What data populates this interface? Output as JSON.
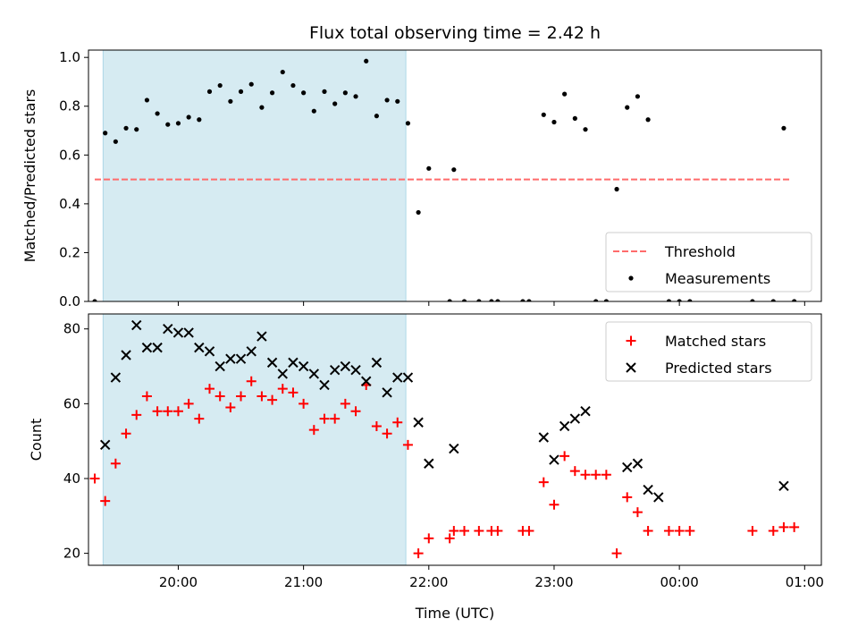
{
  "chart_data": {
    "title": "Flux total observing time = 2.42 h",
    "xlabel": "Time (UTC)",
    "x_unit": "UTC time (days since 00:00 on plotted first day)",
    "x_range": [
      "19:17",
      "01:08"
    ],
    "x_ticks": [
      {
        "time": "20:00",
        "label": "20:00"
      },
      {
        "time": "21:00",
        "label": "21:00"
      },
      {
        "time": "22:00",
        "label": "22:00"
      },
      {
        "time": "23:00",
        "label": "23:00"
      },
      {
        "time": "00:00",
        "label": "00:00"
      },
      {
        "time": "01:00",
        "label": "01:00"
      }
    ],
    "shaded_interval": {
      "start": "19:24",
      "end": "21:49",
      "color": "#add8e6"
    },
    "panels": [
      {
        "id": "ratio",
        "type": "scatter",
        "ylabel": "Matched/Predicted stars",
        "ylim": [
          0,
          1.03
        ],
        "yticks": [
          0.0,
          0.2,
          0.4,
          0.6,
          0.8,
          1.0
        ],
        "ytick_labels": [
          "0.0",
          "0.2",
          "0.4",
          "0.6",
          "0.8",
          "1.0"
        ],
        "legend": {
          "position": "lower right",
          "entries": [
            "Threshold",
            "Measurements"
          ]
        },
        "threshold": {
          "name": "Threshold",
          "y": 0.5,
          "x_start": "19:20",
          "x_end": "00:53",
          "color": "#ff6b6b",
          "style": "dashed"
        },
        "series": [
          {
            "name": "Measurements",
            "color": "#000000",
            "marker": "dot",
            "points": [
              [
                "19:20",
                0.0
              ],
              [
                "19:25",
                0.69
              ],
              [
                "19:30",
                0.655
              ],
              [
                "19:35",
                0.71
              ],
              [
                "19:40",
                0.705
              ],
              [
                "19:45",
                0.825
              ],
              [
                "19:50",
                0.77
              ],
              [
                "19:55",
                0.725
              ],
              [
                "20:00",
                0.73
              ],
              [
                "20:05",
                0.755
              ],
              [
                "20:10",
                0.745
              ],
              [
                "20:15",
                0.86
              ],
              [
                "20:20",
                0.885
              ],
              [
                "20:25",
                0.82
              ],
              [
                "20:30",
                0.86
              ],
              [
                "20:35",
                0.89
              ],
              [
                "20:40",
                0.795
              ],
              [
                "20:45",
                0.855
              ],
              [
                "20:50",
                0.94
              ],
              [
                "20:55",
                0.885
              ],
              [
                "21:00",
                0.855
              ],
              [
                "21:05",
                0.78
              ],
              [
                "21:10",
                0.86
              ],
              [
                "21:15",
                0.81
              ],
              [
                "21:20",
                0.855
              ],
              [
                "21:25",
                0.84
              ],
              [
                "21:30",
                0.985
              ],
              [
                "21:35",
                0.76
              ],
              [
                "21:40",
                0.825
              ],
              [
                "21:45",
                0.82
              ],
              [
                "21:50",
                0.73
              ],
              [
                "21:55",
                0.365
              ],
              [
                "22:00",
                0.545
              ],
              [
                "22:10",
                0.0
              ],
              [
                "22:12",
                0.54
              ],
              [
                "22:17",
                0.0
              ],
              [
                "22:24",
                0.0
              ],
              [
                "22:30",
                0.0
              ],
              [
                "22:33",
                0.0
              ],
              [
                "22:45",
                0.0
              ],
              [
                "22:48",
                0.0
              ],
              [
                "22:55",
                0.765
              ],
              [
                "23:00",
                0.735
              ],
              [
                "23:05",
                0.85
              ],
              [
                "23:10",
                0.75
              ],
              [
                "23:15",
                0.705
              ],
              [
                "23:20",
                0.0
              ],
              [
                "23:25",
                0.0
              ],
              [
                "23:30",
                0.46
              ],
              [
                "23:35",
                0.795
              ],
              [
                "23:40",
                0.84
              ],
              [
                "23:45",
                0.745
              ],
              [
                "23:55",
                0.0
              ],
              [
                "00:00",
                0.0
              ],
              [
                "00:05",
                0.0
              ],
              [
                "00:35",
                0.0
              ],
              [
                "00:45",
                0.0
              ],
              [
                "00:50",
                0.71
              ],
              [
                "00:55",
                0.0
              ]
            ]
          }
        ]
      },
      {
        "id": "counts",
        "type": "scatter",
        "ylabel": "Count",
        "ylim": [
          16.8,
          84.0
        ],
        "yticks": [
          20,
          40,
          60,
          80
        ],
        "ytick_labels": [
          "20",
          "40",
          "60",
          "80"
        ],
        "legend": {
          "position": "upper right",
          "entries": [
            "Matched stars",
            "Predicted stars"
          ]
        },
        "series": [
          {
            "name": "Matched stars",
            "color": "#ff0000",
            "marker": "plus",
            "points": [
              [
                "19:20",
                40
              ],
              [
                "19:25",
                34
              ],
              [
                "19:30",
                44
              ],
              [
                "19:35",
                52
              ],
              [
                "19:40",
                57
              ],
              [
                "19:45",
                62
              ],
              [
                "19:50",
                58
              ],
              [
                "19:55",
                58
              ],
              [
                "20:00",
                58
              ],
              [
                "20:05",
                60
              ],
              [
                "20:10",
                56
              ],
              [
                "20:15",
                64
              ],
              [
                "20:20",
                62
              ],
              [
                "20:25",
                59
              ],
              [
                "20:30",
                62
              ],
              [
                "20:35",
                66
              ],
              [
                "20:40",
                62
              ],
              [
                "20:45",
                61
              ],
              [
                "20:50",
                64
              ],
              [
                "20:55",
                63
              ],
              [
                "21:00",
                60
              ],
              [
                "21:05",
                53
              ],
              [
                "21:10",
                56
              ],
              [
                "21:15",
                56
              ],
              [
                "21:20",
                60
              ],
              [
                "21:25",
                58
              ],
              [
                "21:30",
                65
              ],
              [
                "21:35",
                54
              ],
              [
                "21:40",
                52
              ],
              [
                "21:45",
                55
              ],
              [
                "21:50",
                49
              ],
              [
                "21:55",
                20
              ],
              [
                "22:00",
                24
              ],
              [
                "22:10",
                24
              ],
              [
                "22:12",
                26
              ],
              [
                "22:17",
                26
              ],
              [
                "22:24",
                26
              ],
              [
                "22:30",
                26
              ],
              [
                "22:33",
                26
              ],
              [
                "22:45",
                26
              ],
              [
                "22:48",
                26
              ],
              [
                "22:55",
                39
              ],
              [
                "23:00",
                33
              ],
              [
                "23:05",
                46
              ],
              [
                "23:10",
                42
              ],
              [
                "23:15",
                41
              ],
              [
                "23:20",
                41
              ],
              [
                "23:25",
                41
              ],
              [
                "23:30",
                20
              ],
              [
                "23:35",
                35
              ],
              [
                "23:40",
                31
              ],
              [
                "23:45",
                26
              ],
              [
                "23:55",
                26
              ],
              [
                "00:00",
                26
              ],
              [
                "00:05",
                26
              ],
              [
                "00:35",
                26
              ],
              [
                "00:45",
                26
              ],
              [
                "00:50",
                27
              ],
              [
                "00:55",
                27
              ]
            ]
          },
          {
            "name": "Predicted stars",
            "color": "#000000",
            "marker": "x",
            "points": [
              [
                "19:25",
                49
              ],
              [
                "19:30",
                67
              ],
              [
                "19:35",
                73
              ],
              [
                "19:40",
                81
              ],
              [
                "19:45",
                75
              ],
              [
                "19:50",
                75
              ],
              [
                "19:55",
                80
              ],
              [
                "20:00",
                79
              ],
              [
                "20:05",
                79
              ],
              [
                "20:10",
                75
              ],
              [
                "20:15",
                74
              ],
              [
                "20:20",
                70
              ],
              [
                "20:25",
                72
              ],
              [
                "20:30",
                72
              ],
              [
                "20:35",
                74
              ],
              [
                "20:40",
                78
              ],
              [
                "20:45",
                71
              ],
              [
                "20:50",
                68
              ],
              [
                "20:55",
                71
              ],
              [
                "21:00",
                70
              ],
              [
                "21:05",
                68
              ],
              [
                "21:10",
                65
              ],
              [
                "21:15",
                69
              ],
              [
                "21:20",
                70
              ],
              [
                "21:25",
                69
              ],
              [
                "21:30",
                66
              ],
              [
                "21:35",
                71
              ],
              [
                "21:40",
                63
              ],
              [
                "21:45",
                67
              ],
              [
                "21:50",
                67
              ],
              [
                "21:55",
                55
              ],
              [
                "22:00",
                44
              ],
              [
                "22:12",
                48
              ],
              [
                "22:55",
                51
              ],
              [
                "23:00",
                45
              ],
              [
                "23:05",
                54
              ],
              [
                "23:10",
                56
              ],
              [
                "23:15",
                58
              ],
              [
                "23:35",
                43
              ],
              [
                "23:40",
                44
              ],
              [
                "23:45",
                37
              ],
              [
                "23:50",
                35
              ],
              [
                "00:50",
                38
              ]
            ]
          }
        ]
      }
    ]
  }
}
